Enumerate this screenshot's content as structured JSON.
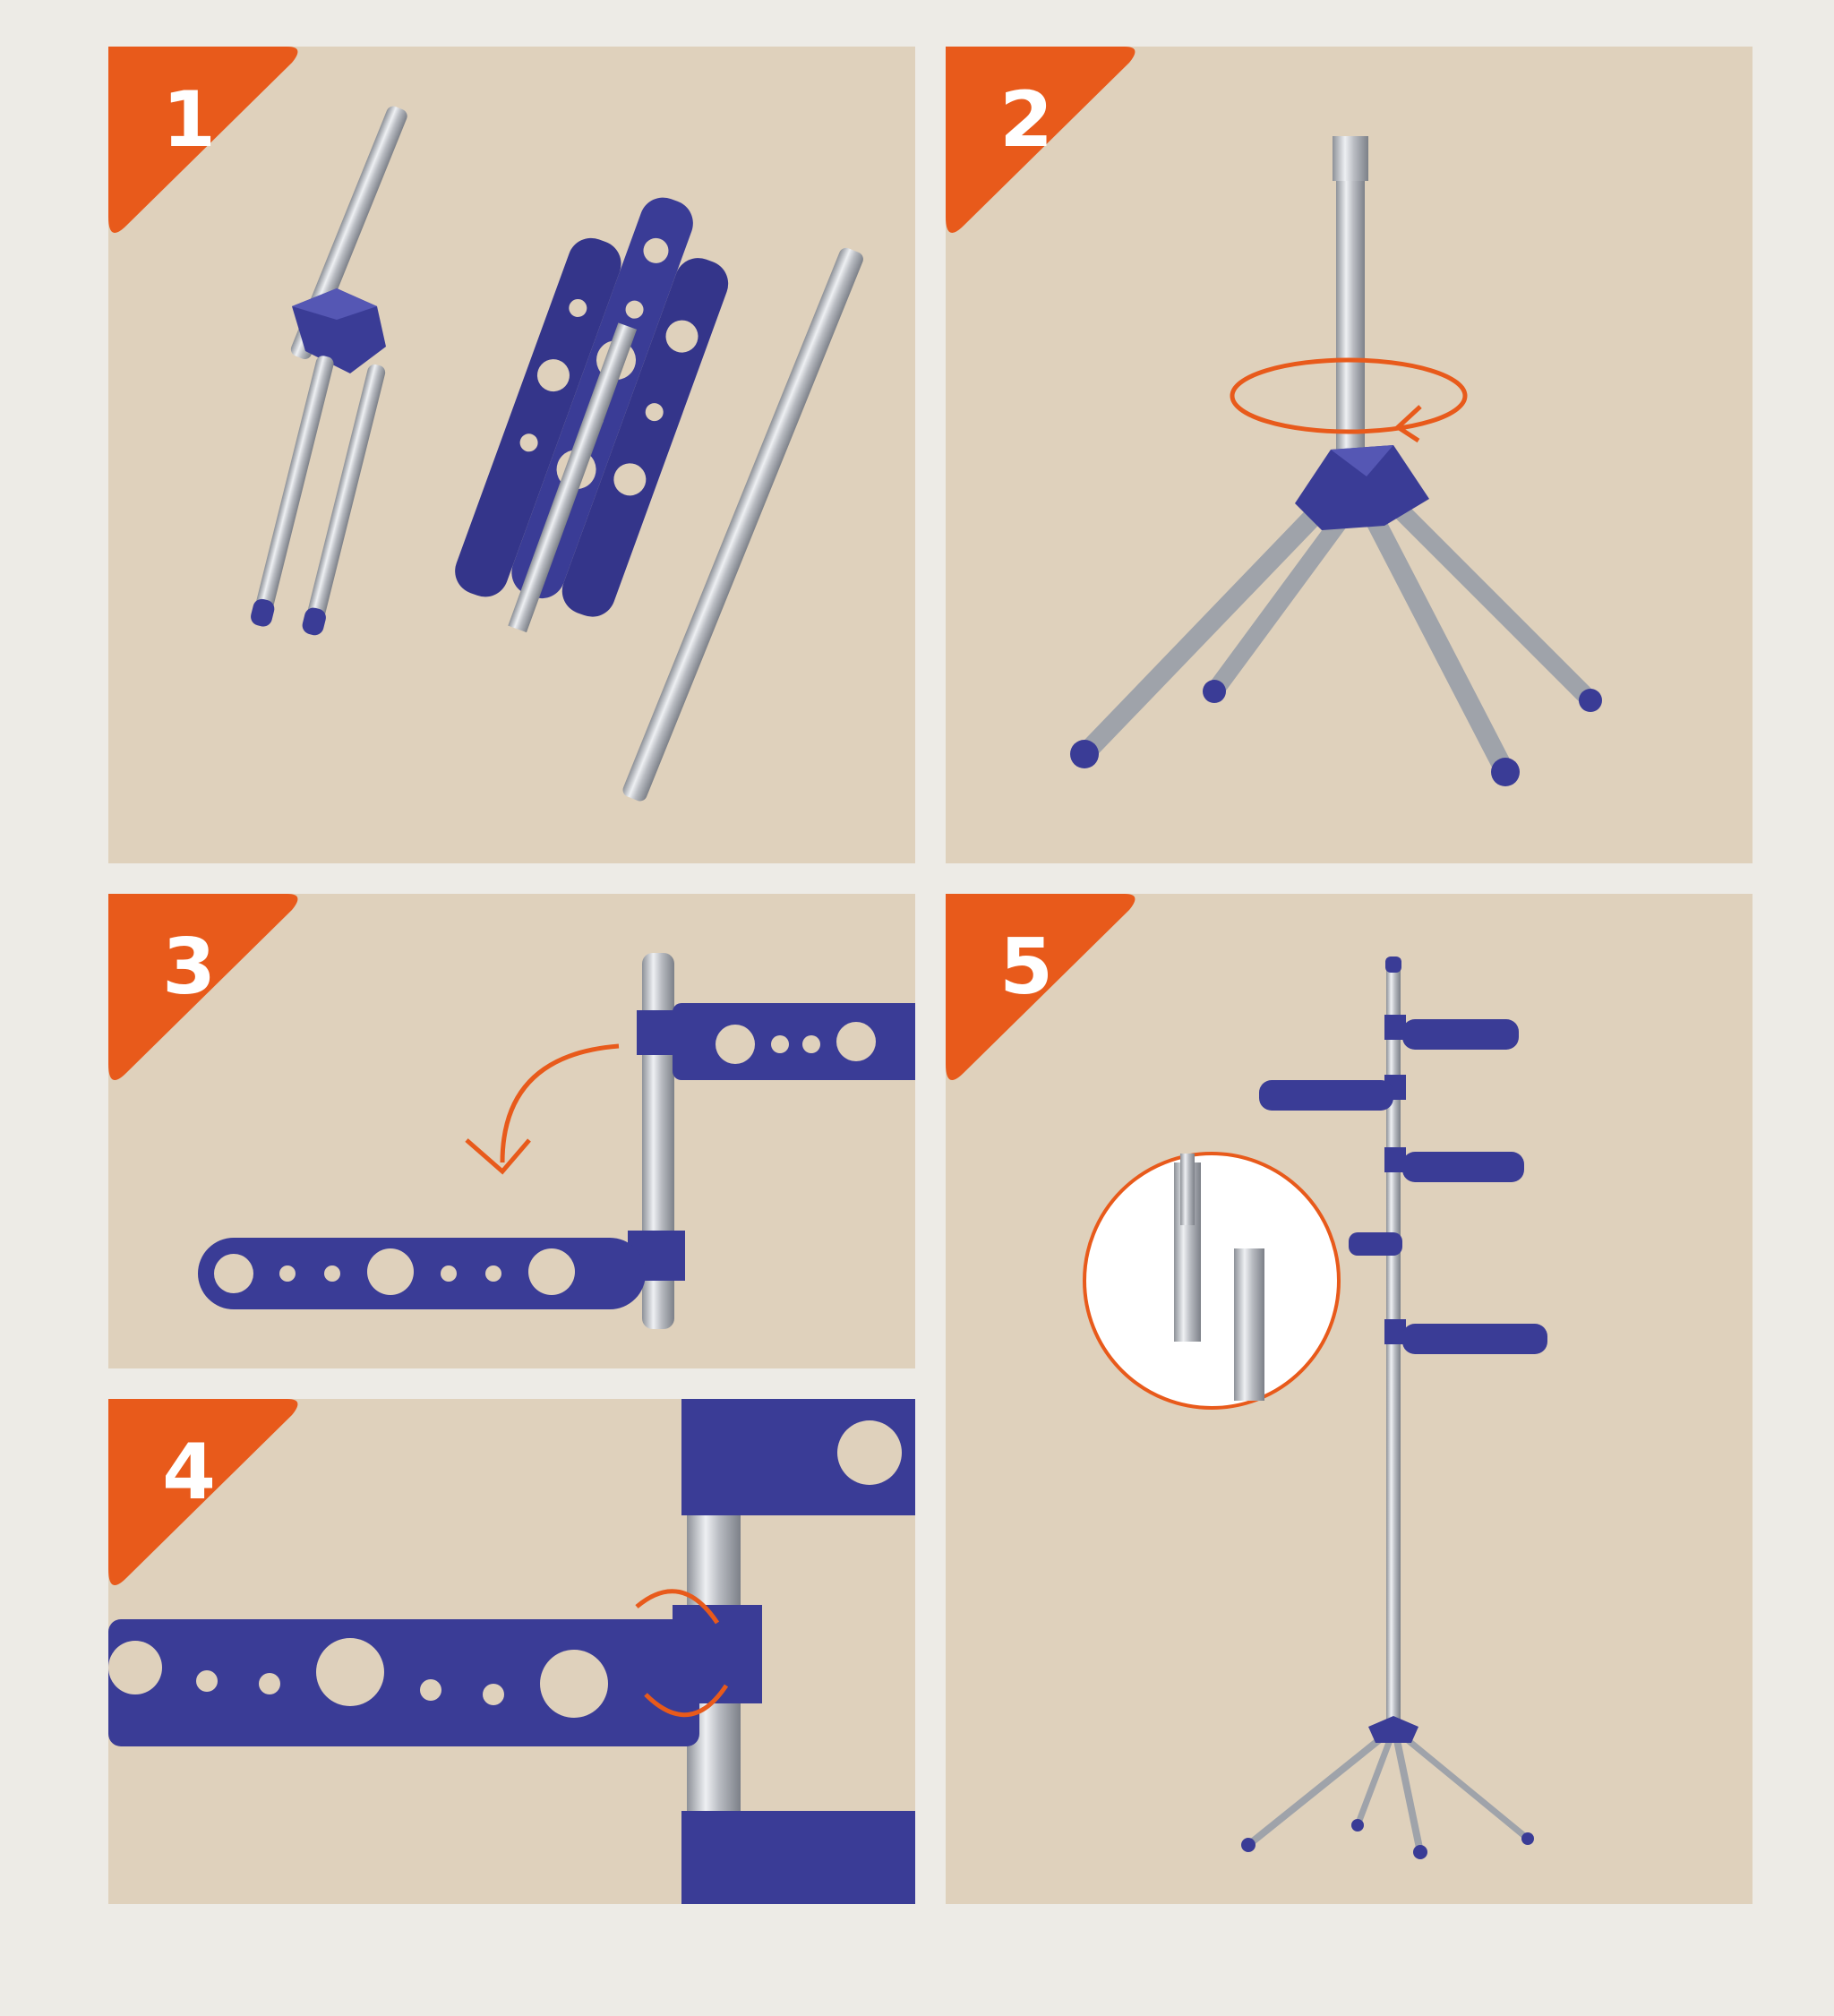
{
  "steps": [
    {
      "number": "1"
    },
    {
      "number": "2"
    },
    {
      "number": "3"
    },
    {
      "number": "4"
    },
    {
      "number": "5"
    }
  ],
  "colors": {
    "page_background": "#edebe6",
    "panel_background": "#dfd1bc",
    "badge_orange": "#e85a1b",
    "plastic_blue": "#3a3c96",
    "steel": "#b9bcc2"
  }
}
